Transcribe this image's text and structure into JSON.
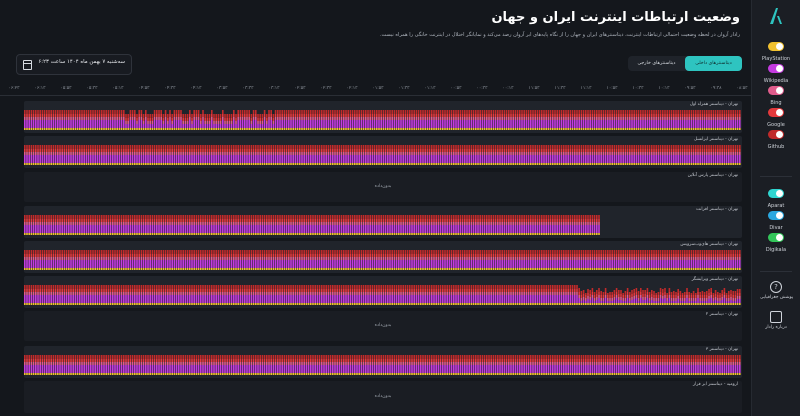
{
  "sidebar": {
    "services": [
      {
        "label": "PlayStation",
        "color": "#f2c230"
      },
      {
        "label": "Wikipedia",
        "color": "#c43be0"
      },
      {
        "label": "Bing",
        "color": "#e05c8c"
      },
      {
        "label": "Google",
        "color": "#e4393c"
      },
      {
        "label": "Github",
        "color": "#c12a2a"
      },
      {
        "label": "Aparat",
        "color": "#2fd5d0"
      },
      {
        "label": "Divar",
        "color": "#2aa7df"
      },
      {
        "label": "Digikala",
        "color": "#33c65a"
      }
    ],
    "buttons": [
      {
        "label": "پوشش جغرافیایی",
        "icon": "question-icon"
      },
      {
        "label": "درباره رادار",
        "icon": "book-icon"
      }
    ]
  },
  "header": {
    "title": "وضعیت ارتباطات اینترنت ایران و جهان",
    "description": "رادار آروان در لحظه وضعیت احتمالی ارتباطات اینترنت، دیتاسنترهای ایران و جهان را از نگاه پایه‌های ابر آروان رصد می‌کند و نمایانگر اختلال در اینترنت خانگی را همراه نیست."
  },
  "tabs": {
    "active": "دیتاسنترهای داخلی",
    "inactive": "دیتاسنترهای خارجی"
  },
  "date": {
    "value": "سه‌شنبه ۷ بهمن ماه ۱۴۰۴ ساعت ۶:۲۳"
  },
  "axis": {
    "ticks": [
      "۰۸:۵۳",
      "۰۹:۳۸",
      "۰۹:۵۳",
      "۱۰:۱۳",
      "۱۰:۳۳",
      "۱۰:۵۳",
      "۱۱:۱۳",
      "۱۱:۳۳",
      "۱۱:۵۳",
      "۰۰:۱۳",
      "۰۰:۳۳",
      "۰۰:۵۳",
      "۰۱:۱۳",
      "۰۱:۳۳",
      "۰۱:۵۳",
      "۰۲:۱۳",
      "۰۲:۳۳",
      "۰۲:۵۳",
      "۰۳:۱۳",
      "۰۳:۳۳",
      "۰۳:۵۳",
      "۰۴:۱۳",
      "۰۴:۳۳",
      "۰۴:۵۳",
      "۰۵:۱۳",
      "۰۵:۳۳",
      "۰۵:۵۳",
      "۰۶:۱۳",
      "۰۶:۲۳"
    ]
  },
  "panels": [
    {
      "label": "تهران - دیتاسنتر همراه اول",
      "status": "data",
      "pattern": "full-dip"
    },
    {
      "label": "تهران - دیتاسنتر ایرانسل",
      "status": "data",
      "pattern": "full"
    },
    {
      "label": "تهران - دیتاسنتر پارس آنلاین",
      "status": "nodata",
      "message": "بدون‌داده"
    },
    {
      "label": "تهران - دیتاسنتر افرانت",
      "status": "data",
      "pattern": "partial"
    },
    {
      "label": "تهران - دیتاسنتر های‌وب‌سرویس",
      "status": "data",
      "pattern": "full"
    },
    {
      "label": "تهران - دیتاسنتر ویرایشگر",
      "status": "data",
      "pattern": "degraded"
    },
    {
      "label": "تهران - دیتاسنتر ۲",
      "status": "nodata",
      "message": "بدون‌داده"
    },
    {
      "label": "تهران - دیتاسنتر ۳",
      "status": "data",
      "pattern": "full"
    },
    {
      "label": "ارومیه - دیتاسنتر ابر فراز",
      "status": "nodata",
      "message": "بدون‌داده"
    }
  ]
}
